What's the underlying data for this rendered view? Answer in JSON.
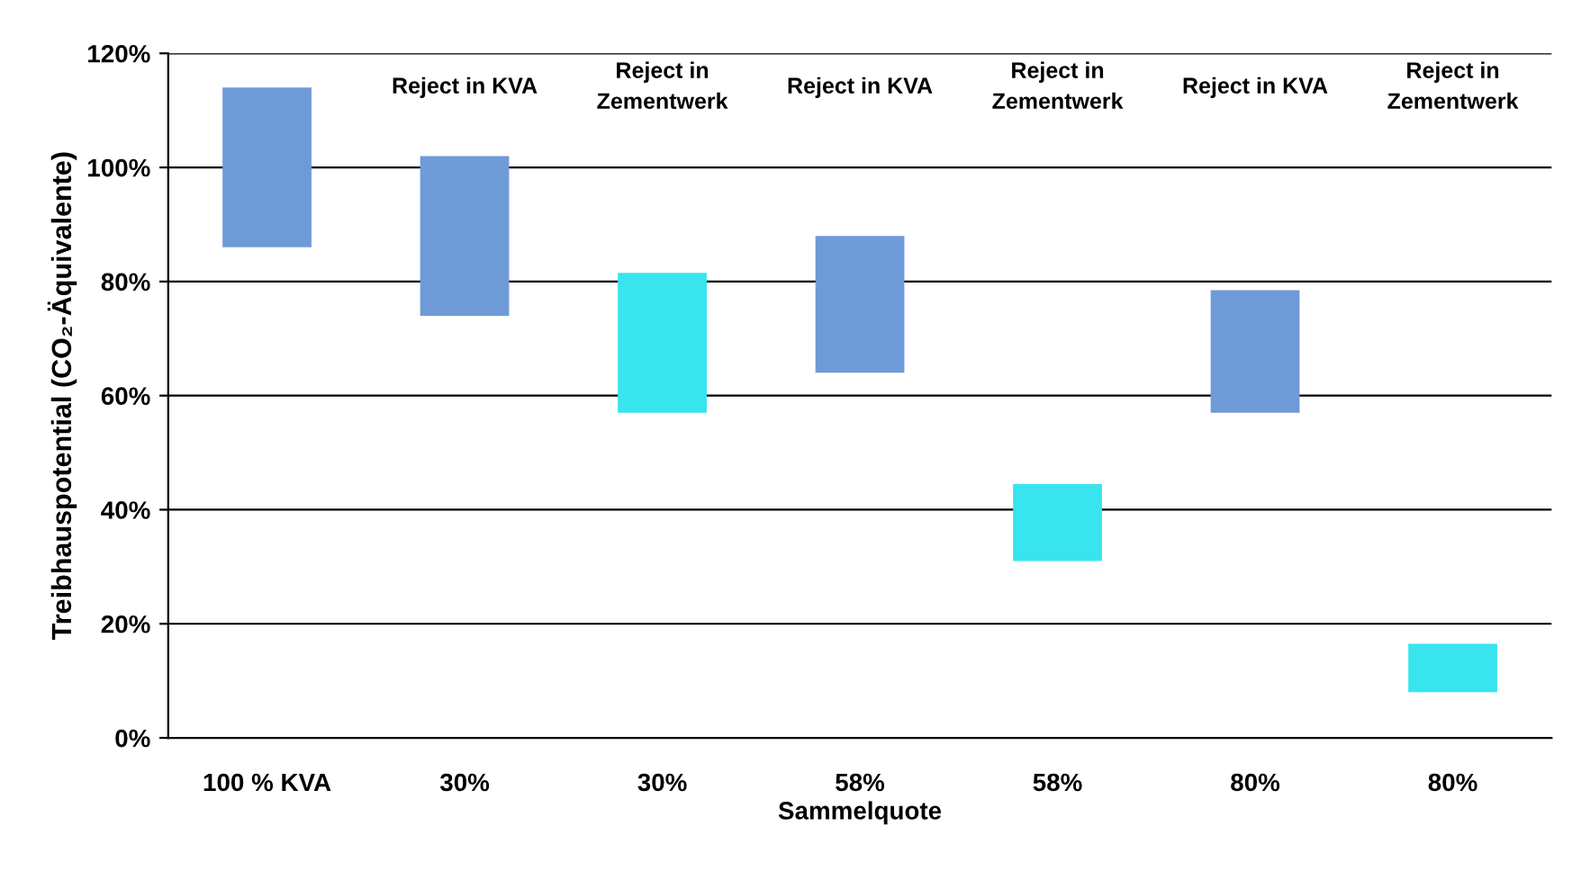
{
  "chart_data": {
    "type": "bar",
    "ylabel": "Treibhauspotential (CO₂-Äquivalente)",
    "xlabel": "Sammelquote",
    "categories": [
      "100 % KVA",
      "30%",
      "30%",
      "58%",
      "58%",
      "80%",
      "80%"
    ],
    "base": [
      86,
      74,
      57,
      64,
      31,
      57,
      8
    ],
    "values": [
      28,
      28,
      24.5,
      24,
      13.5,
      21.5,
      8.5
    ],
    "colors": [
      "#6f9ad8",
      "#6f9ad8",
      "#38e4ee",
      "#6f9ad8",
      "#38e4ee",
      "#6f9ad8",
      "#38e4ee"
    ],
    "annotations": [
      "Reject in KVA",
      "Reject in\nZementwerk",
      "Reject in KVA",
      "Reject in\nZementwerk",
      "Reject in KVA",
      "Reject in\nZementwerk"
    ],
    "ylim": [
      0,
      120
    ],
    "yticks": [
      {
        "value": 0,
        "label": "0%"
      },
      {
        "value": 20,
        "label": "20%"
      },
      {
        "value": 40,
        "label": "40%"
      },
      {
        "value": 60,
        "label": "60%"
      },
      {
        "value": 80,
        "label": "80%"
      },
      {
        "value": 100,
        "label": "100%"
      },
      {
        "value": 120,
        "label": "120%"
      }
    ],
    "grid": "y",
    "legend": false
  }
}
